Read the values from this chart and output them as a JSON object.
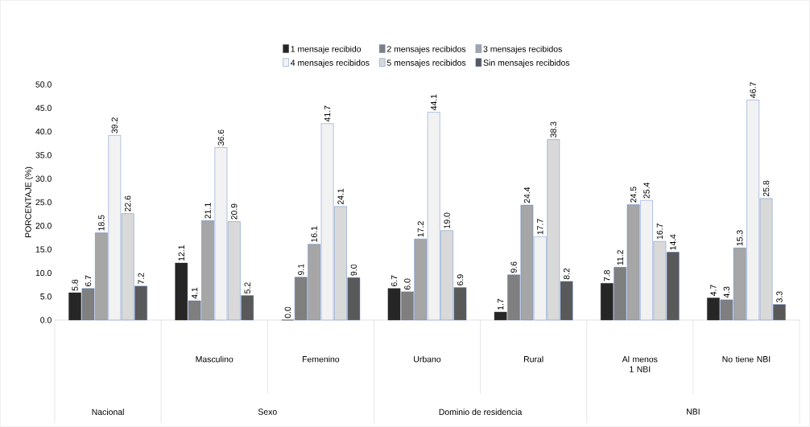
{
  "chart_data": {
    "type": "bar",
    "ylabel": "PORCENTAJE (%)",
    "categories": [
      null,
      "Masculino",
      "Femenino",
      "Urbano",
      "Rural",
      "Al menos 1 NBI",
      "No tiene NBI"
    ],
    "annotations": [
      "Nacional",
      "Sexo",
      "Dominio de residencia",
      "NBI"
    ],
    "series": [
      {
        "name": "1 mensaje recibido",
        "color": "#262626",
        "values": [
          5.8,
          12.1,
          0.0,
          6.7,
          1.7,
          7.8,
          4.7
        ],
        "value_labels": [
          "5.8",
          "12.1",
          "0.0",
          "6.7",
          "1.7",
          "7.8",
          "4.7"
        ]
      },
      {
        "name": "2 mensajes recibidos",
        "color": "#7f7f7f",
        "values": [
          6.7,
          4.1,
          9.1,
          6.0,
          9.6,
          11.2,
          4.3
        ],
        "value_labels": [
          "6.7",
          "4.1",
          "9.1",
          "6.0",
          "9.6",
          "11.2",
          "4.3"
        ]
      },
      {
        "name": "3 mensajes recibidos",
        "color": "#a6a6a6",
        "values": [
          18.5,
          21.1,
          16.1,
          17.2,
          24.4,
          24.5,
          15.3
        ],
        "value_labels": [
          "18.5",
          "21.1",
          "16.1",
          "17.2",
          "24.4",
          "24.5",
          "15.3"
        ]
      },
      {
        "name": "4 mensajes recibidos",
        "color": "#f2f2f2",
        "values": [
          39.2,
          36.6,
          41.7,
          44.1,
          17.7,
          25.4,
          46.7
        ],
        "value_labels": [
          "39.2",
          "36.6",
          "41.7",
          "44.1",
          "17.7",
          "25.4",
          "46.7"
        ]
      },
      {
        "name": "5 mensajes recibidos",
        "color": "#d9d9d9",
        "values": [
          22.6,
          20.9,
          24.1,
          19.0,
          38.3,
          16.7,
          25.8
        ],
        "value_labels": [
          "22.6",
          "20.9",
          "24.1",
          "19.0",
          "38.3",
          "16.7",
          "25.8"
        ]
      },
      {
        "name": "Sin mensajes recibidos",
        "color": "#595959",
        "values": [
          7.2,
          5.2,
          9.0,
          6.9,
          8.2,
          14.4,
          3.3
        ],
        "value_labels": [
          "7.2",
          "5.2",
          "9.0",
          "6.9",
          "8.2",
          "14.4",
          "3.3"
        ]
      }
    ],
    "ylim": [
      0,
      50
    ],
    "yticks": [
      {
        "value": 0,
        "label": "0.0"
      },
      {
        "value": 5,
        "label": "5.0"
      },
      {
        "value": 10,
        "label": "10.0"
      },
      {
        "value": 15,
        "label": "15.0"
      },
      {
        "value": 20,
        "label": "20.0"
      },
      {
        "value": 25,
        "label": "25.0"
      },
      {
        "value": 30,
        "label": "30.0"
      },
      {
        "value": 35,
        "label": "35.0"
      },
      {
        "value": 40,
        "label": "40.0"
      },
      {
        "value": 45,
        "label": "45.0"
      },
      {
        "value": 50,
        "label": "50.0"
      }
    ],
    "legend": "top"
  }
}
